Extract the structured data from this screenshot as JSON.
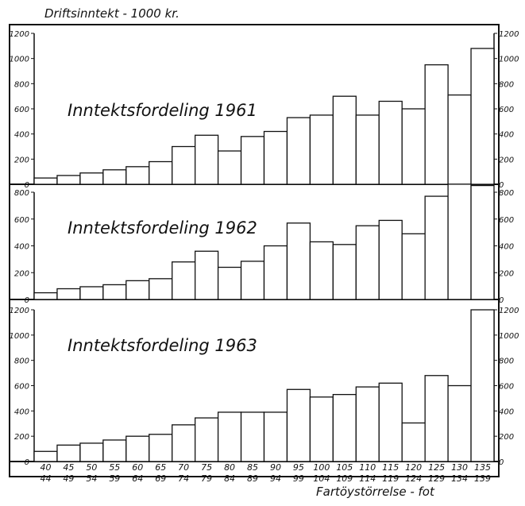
{
  "chart_data": {
    "type": "bar",
    "ylabel": "Driftsinntekt - 1000 kr.",
    "xlabel": "Fartöystörrelse - fot",
    "categories": [
      {
        "top": "40",
        "bottom": "44"
      },
      {
        "top": "45",
        "bottom": "49"
      },
      {
        "top": "50",
        "bottom": "54"
      },
      {
        "top": "55",
        "bottom": "59"
      },
      {
        "top": "60",
        "bottom": "64"
      },
      {
        "top": "65",
        "bottom": "69"
      },
      {
        "top": "70",
        "bottom": "74"
      },
      {
        "top": "75",
        "bottom": "79"
      },
      {
        "top": "80",
        "bottom": "84"
      },
      {
        "top": "85",
        "bottom": "89"
      },
      {
        "top": "90",
        "bottom": "94"
      },
      {
        "top": "95",
        "bottom": "99"
      },
      {
        "top": "100",
        "bottom": "104"
      },
      {
        "top": "105",
        "bottom": "109"
      },
      {
        "top": "110",
        "bottom": "114"
      },
      {
        "top": "115",
        "bottom": "119"
      },
      {
        "top": "120",
        "bottom": "124"
      },
      {
        "top": "125",
        "bottom": "129"
      },
      {
        "top": "130",
        "bottom": "134"
      },
      {
        "top": "135",
        "bottom": "139"
      }
    ],
    "panels": [
      {
        "title": "Inntektsfordeling 1961",
        "ylim": [
          0,
          1200
        ],
        "left_ticks": [
          "0",
          "200",
          "400",
          "600",
          "800",
          "1000",
          "1200"
        ],
        "right_ticks": [
          "0",
          "200",
          "400",
          "600",
          "800",
          "1000",
          "1200"
        ],
        "values": [
          50,
          70,
          90,
          115,
          140,
          180,
          300,
          390,
          265,
          380,
          420,
          530,
          550,
          700,
          550,
          660,
          600,
          950,
          710,
          1080
        ]
      },
      {
        "title": "Inntektsfordeling 1962",
        "ylim": [
          0,
          800
        ],
        "left_ticks": [
          "0",
          "200",
          "400",
          "600",
          "800"
        ],
        "right_ticks": [
          "0",
          "200",
          "400",
          "600",
          "800"
        ],
        "values": [
          50,
          80,
          95,
          110,
          140,
          155,
          280,
          360,
          240,
          285,
          400,
          570,
          430,
          410,
          550,
          590,
          490,
          770,
          860,
          850
        ]
      },
      {
        "title": "Inntektsfordeling 1963",
        "ylim": [
          0,
          1200
        ],
        "left_ticks": [
          "0",
          "200",
          "400",
          "600",
          "800",
          "1000",
          "1200"
        ],
        "right_ticks": [
          "0",
          "200",
          "400",
          "600",
          "800",
          "1000",
          "1200"
        ],
        "values": [
          80,
          130,
          145,
          170,
          200,
          215,
          290,
          345,
          390,
          390,
          390,
          570,
          510,
          530,
          590,
          620,
          305,
          680,
          600,
          1200
        ]
      }
    ]
  }
}
